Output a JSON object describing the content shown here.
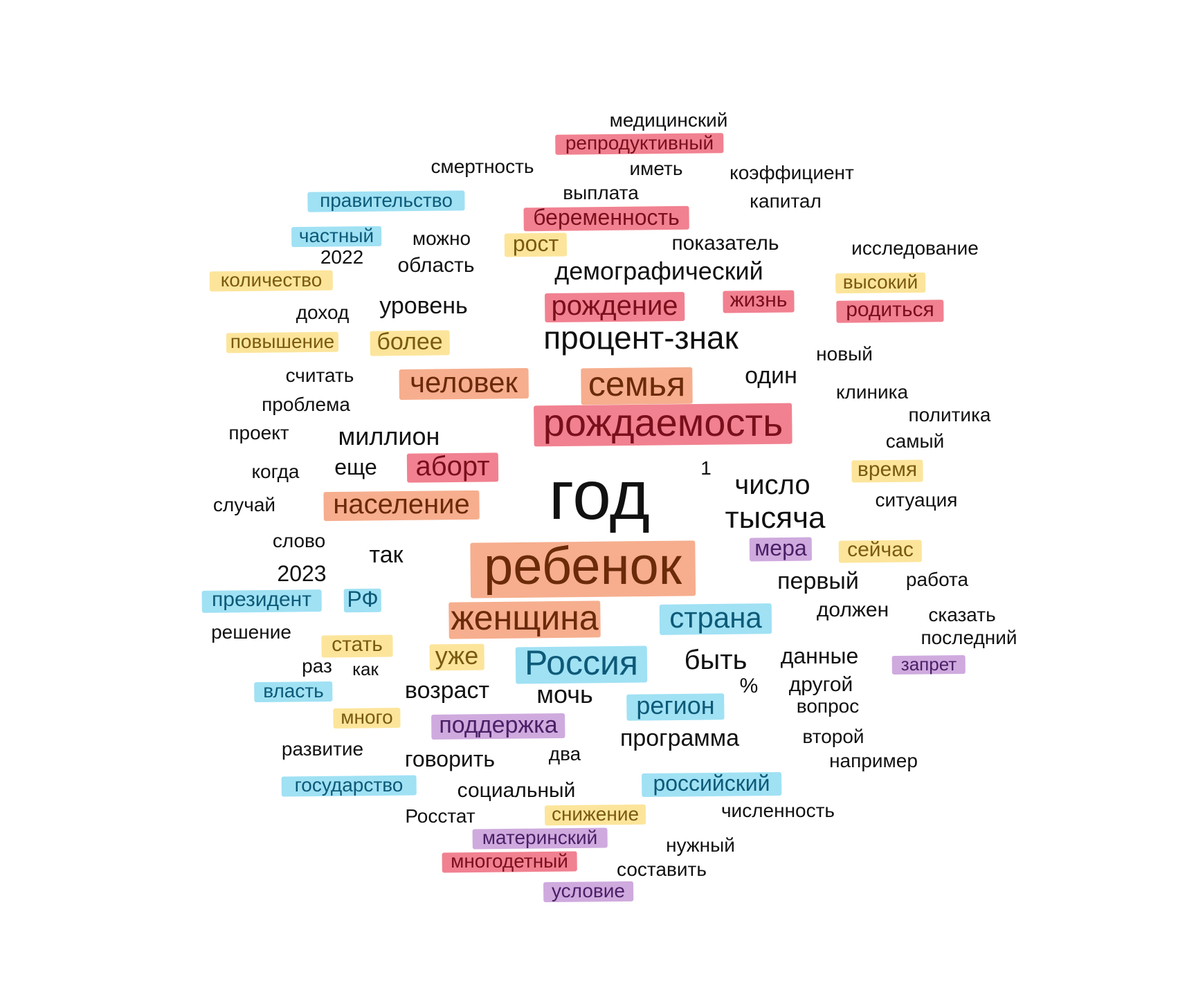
{
  "categories": {
    "red": "#ee6b7c",
    "orange": "#f5a07a",
    "yellow": "#fbe08a",
    "blue": "#8fdcf2",
    "purple": "#c79bd8",
    "none": null
  },
  "words": [
    {
      "text": "медицинский",
      "category": "none"
    },
    {
      "text": "репродуктивный",
      "category": "red"
    },
    {
      "text": "смертность",
      "category": "none"
    },
    {
      "text": "иметь",
      "category": "none"
    },
    {
      "text": "коэффициент",
      "category": "none"
    },
    {
      "text": "выплата",
      "category": "none"
    },
    {
      "text": "правительство",
      "category": "blue"
    },
    {
      "text": "капитал",
      "category": "none"
    },
    {
      "text": "беременность",
      "category": "red"
    },
    {
      "text": "частный",
      "category": "blue"
    },
    {
      "text": "можно",
      "category": "none"
    },
    {
      "text": "рост",
      "category": "yellow"
    },
    {
      "text": "показатель",
      "category": "none"
    },
    {
      "text": "исследование",
      "category": "none"
    },
    {
      "text": "2022",
      "category": "none"
    },
    {
      "text": "область",
      "category": "none"
    },
    {
      "text": "демографический",
      "category": "none"
    },
    {
      "text": "количество",
      "category": "yellow"
    },
    {
      "text": "высокий",
      "category": "yellow"
    },
    {
      "text": "жизнь",
      "category": "red"
    },
    {
      "text": "доход",
      "category": "none"
    },
    {
      "text": "уровень",
      "category": "none"
    },
    {
      "text": "рождение",
      "category": "red"
    },
    {
      "text": "родиться",
      "category": "red"
    },
    {
      "text": "повышение",
      "category": "yellow"
    },
    {
      "text": "более",
      "category": "yellow"
    },
    {
      "text": "процент-знак",
      "category": "none"
    },
    {
      "text": "новый",
      "category": "none"
    },
    {
      "text": "считать",
      "category": "none"
    },
    {
      "text": "человек",
      "category": "orange"
    },
    {
      "text": "семья",
      "category": "orange"
    },
    {
      "text": "один",
      "category": "none"
    },
    {
      "text": "клиника",
      "category": "none"
    },
    {
      "text": "проблема",
      "category": "none"
    },
    {
      "text": "рождаемость",
      "category": "red"
    },
    {
      "text": "политика",
      "category": "none"
    },
    {
      "text": "проект",
      "category": "none"
    },
    {
      "text": "миллион",
      "category": "none"
    },
    {
      "text": "самый",
      "category": "none"
    },
    {
      "text": "когда",
      "category": "none"
    },
    {
      "text": "еще",
      "category": "none"
    },
    {
      "text": "аборт",
      "category": "red"
    },
    {
      "text": "год",
      "category": "none"
    },
    {
      "text": "1",
      "category": "none"
    },
    {
      "text": "время",
      "category": "yellow"
    },
    {
      "text": "число",
      "category": "none"
    },
    {
      "text": "случай",
      "category": "none"
    },
    {
      "text": "население",
      "category": "orange"
    },
    {
      "text": "ситуация",
      "category": "none"
    },
    {
      "text": "тысяча",
      "category": "none"
    },
    {
      "text": "слово",
      "category": "none"
    },
    {
      "text": "мера",
      "category": "purple"
    },
    {
      "text": "сейчас",
      "category": "yellow"
    },
    {
      "text": "так",
      "category": "none"
    },
    {
      "text": "ребенок",
      "category": "orange"
    },
    {
      "text": "2023",
      "category": "none"
    },
    {
      "text": "первый",
      "category": "none"
    },
    {
      "text": "работа",
      "category": "none"
    },
    {
      "text": "президент",
      "category": "blue"
    },
    {
      "text": "РФ",
      "category": "blue"
    },
    {
      "text": "должен",
      "category": "none"
    },
    {
      "text": "сказать",
      "category": "none"
    },
    {
      "text": "решение",
      "category": "none"
    },
    {
      "text": "женщина",
      "category": "orange"
    },
    {
      "text": "страна",
      "category": "blue"
    },
    {
      "text": "последний",
      "category": "none"
    },
    {
      "text": "стать",
      "category": "yellow"
    },
    {
      "text": "уже",
      "category": "yellow"
    },
    {
      "text": "Россия",
      "category": "blue"
    },
    {
      "text": "быть",
      "category": "none"
    },
    {
      "text": "данные",
      "category": "none"
    },
    {
      "text": "запрет",
      "category": "purple"
    },
    {
      "text": "раз",
      "category": "none"
    },
    {
      "text": "как",
      "category": "none"
    },
    {
      "text": "власть",
      "category": "blue"
    },
    {
      "text": "возраст",
      "category": "none"
    },
    {
      "text": "мочь",
      "category": "none"
    },
    {
      "text": "%",
      "category": "none"
    },
    {
      "text": "другой",
      "category": "none"
    },
    {
      "text": "регион",
      "category": "blue"
    },
    {
      "text": "вопрос",
      "category": "none"
    },
    {
      "text": "много",
      "category": "yellow"
    },
    {
      "text": "поддержка",
      "category": "purple"
    },
    {
      "text": "программа",
      "category": "none"
    },
    {
      "text": "второй",
      "category": "none"
    },
    {
      "text": "развитие",
      "category": "none"
    },
    {
      "text": "говорить",
      "category": "none"
    },
    {
      "text": "два",
      "category": "none"
    },
    {
      "text": "например",
      "category": "none"
    },
    {
      "text": "государство",
      "category": "blue"
    },
    {
      "text": "российский",
      "category": "blue"
    },
    {
      "text": "социальный",
      "category": "none"
    },
    {
      "text": "численность",
      "category": "none"
    },
    {
      "text": "Росстат",
      "category": "none"
    },
    {
      "text": "снижение",
      "category": "yellow"
    },
    {
      "text": "материнский",
      "category": "purple"
    },
    {
      "text": "нужный",
      "category": "none"
    },
    {
      "text": "многодетный",
      "category": "red"
    },
    {
      "text": "составить",
      "category": "none"
    },
    {
      "text": "условие",
      "category": "purple"
    }
  ]
}
